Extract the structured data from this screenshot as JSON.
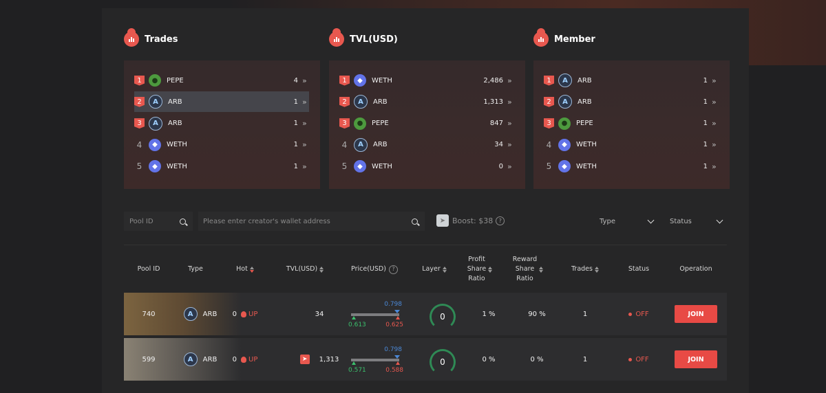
{
  "rankings": [
    {
      "title": "Trades",
      "items": [
        {
          "rank": "1",
          "token": "PEPE",
          "icon": "pepe-icon",
          "value": "4"
        },
        {
          "rank": "2",
          "token": "ARB",
          "icon": "arb-icon",
          "value": "1"
        },
        {
          "rank": "3",
          "token": "ARB",
          "icon": "arb-icon",
          "value": "1"
        },
        {
          "rank": "4",
          "token": "WETH",
          "icon": "weth-icon",
          "value": "1"
        },
        {
          "rank": "5",
          "token": "WETH",
          "icon": "weth-icon",
          "value": "1"
        }
      ]
    },
    {
      "title": "TVL(USD)",
      "items": [
        {
          "rank": "1",
          "token": "WETH",
          "icon": "weth-icon",
          "value": "2,486"
        },
        {
          "rank": "2",
          "token": "ARB",
          "icon": "arb-icon",
          "value": "1,313"
        },
        {
          "rank": "3",
          "token": "PEPE",
          "icon": "pepe-icon",
          "value": "847"
        },
        {
          "rank": "4",
          "token": "ARB",
          "icon": "arb-icon",
          "value": "34"
        },
        {
          "rank": "5",
          "token": "WETH",
          "icon": "weth-icon",
          "value": "0"
        }
      ]
    },
    {
      "title": "Member",
      "items": [
        {
          "rank": "1",
          "token": "ARB",
          "icon": "arb-icon",
          "value": "1"
        },
        {
          "rank": "2",
          "token": "ARB",
          "icon": "arb-icon",
          "value": "1"
        },
        {
          "rank": "3",
          "token": "PEPE",
          "icon": "pepe-icon",
          "value": "1"
        },
        {
          "rank": "4",
          "token": "WETH",
          "icon": "weth-icon",
          "value": "1"
        },
        {
          "rank": "5",
          "token": "WETH",
          "icon": "weth-icon",
          "value": "1"
        }
      ]
    }
  ],
  "filters": {
    "pool_id_placeholder": "Pool ID",
    "wallet_placeholder": "Please enter creator's wallet address",
    "boost_label": "Boost: $38",
    "type_label": "Type",
    "status_label": "Status"
  },
  "table": {
    "headers": {
      "pool_id": "Pool ID",
      "type": "Type",
      "hot": "Hot",
      "tvl": "TVL(USD)",
      "price": "Price(USD)",
      "layer": "Layer",
      "profit": [
        "Profit",
        "Share",
        "Ratio"
      ],
      "reward": [
        "Reward",
        "Share",
        "Ratio"
      ],
      "trades": "Trades",
      "status": "Status",
      "operation": "Operation"
    },
    "rows": [
      {
        "pool_id": "740",
        "type": "ARB",
        "hot": "0",
        "hot_tag": "UP",
        "tvl": "34",
        "price_top": "0.798",
        "price_low": "0.613",
        "price_high": "0.625",
        "layer": "0",
        "profit_ratio": "1 %",
        "reward_ratio": "90 %",
        "trades": "1",
        "status": "OFF",
        "operation": "JOIN"
      },
      {
        "pool_id": "599",
        "type": "ARB",
        "hot": "0",
        "hot_tag": "UP",
        "tvl": "1,313",
        "price_top": "0.798",
        "price_low": "0.571",
        "price_high": "0.588",
        "layer": "0",
        "profit_ratio": "0 %",
        "reward_ratio": "0 %",
        "trades": "1",
        "status": "OFF",
        "operation": "JOIN"
      }
    ]
  },
  "colors": {
    "accent": "#e8584f",
    "join_button": "#e84a45",
    "price_top": "#4b88d6",
    "price_low": "#3bc16d"
  }
}
